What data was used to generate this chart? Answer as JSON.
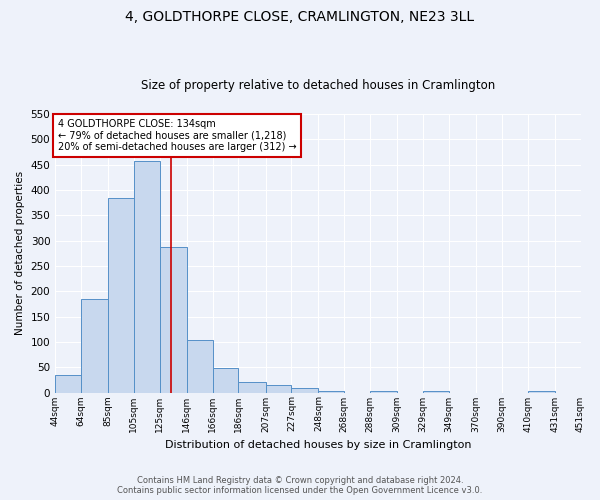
{
  "title": "4, GOLDTHORPE CLOSE, CRAMLINGTON, NE23 3LL",
  "subtitle": "Size of property relative to detached houses in Cramlington",
  "xlabel": "Distribution of detached houses by size in Cramlington",
  "ylabel": "Number of detached properties",
  "bin_edges": [
    44,
    64,
    85,
    105,
    125,
    146,
    166,
    186,
    207,
    227,
    248,
    268,
    288,
    309,
    329,
    349,
    370,
    390,
    410,
    431,
    451
  ],
  "bin_counts": [
    35,
    184,
    385,
    458,
    288,
    103,
    48,
    20,
    15,
    8,
    3,
    0,
    3,
    0,
    3,
    0,
    0,
    0,
    3,
    0
  ],
  "bar_color": "#c8d8ee",
  "bar_edge_color": "#5590c8",
  "property_size": 134,
  "vline_color": "#cc0000",
  "annotation_text": "4 GOLDTHORPE CLOSE: 134sqm\n← 79% of detached houses are smaller (1,218)\n20% of semi-detached houses are larger (312) →",
  "annotation_box_color": "white",
  "annotation_box_edge_color": "#cc0000",
  "ylim": [
    0,
    550
  ],
  "yticks": [
    0,
    50,
    100,
    150,
    200,
    250,
    300,
    350,
    400,
    450,
    500,
    550
  ],
  "footer1": "Contains HM Land Registry data © Crown copyright and database right 2024.",
  "footer2": "Contains public sector information licensed under the Open Government Licence v3.0.",
  "background_color": "#eef2fa",
  "plot_bg_color": "#eef2fa",
  "title_fontsize": 10,
  "subtitle_fontsize": 8.5
}
